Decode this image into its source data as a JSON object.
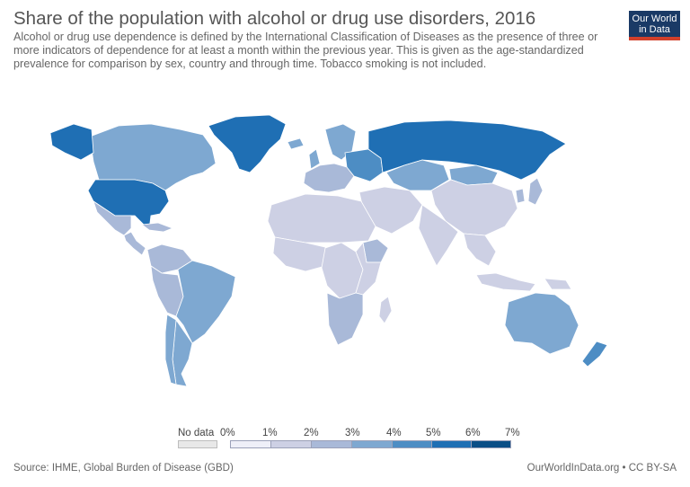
{
  "header": {
    "title": "Share of the population with alcohol or drug use disorders, 2016",
    "subtitle": "Alcohol or drug use dependence is defined by the International Classification of Diseases as the presence of three or more indicators of dependence for at least a month within the previous year. This is given as the age-standardized prevalence for comparison by sex, country and through time. Tobacco smoking is not included."
  },
  "logo": {
    "line1": "Our World",
    "line2": "in Data"
  },
  "legend": {
    "no_data_label": "No data",
    "no_data_color": "#e8e8e8",
    "ticks": [
      "0%",
      "1%",
      "2%",
      "3%",
      "4%",
      "5%",
      "6%",
      "7%"
    ],
    "colors": [
      "#eeeff8",
      "#cdd0e4",
      "#a9b9d8",
      "#7ea8d1",
      "#4d8dc4",
      "#1f6fb4",
      "#0b4e86"
    ]
  },
  "map": {
    "ocean_color": "#ffffff",
    "border_color": "#ffffff",
    "regions": [
      {
        "name": "Greenland",
        "bin": 5
      },
      {
        "name": "Canada",
        "bin": 3
      },
      {
        "name": "United States",
        "bin": 5
      },
      {
        "name": "Alaska",
        "bin": 5
      },
      {
        "name": "Mexico",
        "bin": 2
      },
      {
        "name": "Central America",
        "bin": 2
      },
      {
        "name": "Caribbean",
        "bin": 2
      },
      {
        "name": "Colombia/Venezuela",
        "bin": 2
      },
      {
        "name": "Brazil",
        "bin": 3
      },
      {
        "name": "Peru/Bolivia",
        "bin": 2
      },
      {
        "name": "Argentina",
        "bin": 3
      },
      {
        "name": "Chile",
        "bin": 3
      },
      {
        "name": "Europe West",
        "bin": 2
      },
      {
        "name": "Scandinavia",
        "bin": 3
      },
      {
        "name": "UK",
        "bin": 3
      },
      {
        "name": "Iceland",
        "bin": 3
      },
      {
        "name": "Eastern Europe",
        "bin": 4
      },
      {
        "name": "Russia",
        "bin": 5
      },
      {
        "name": "Kazakhstan",
        "bin": 3
      },
      {
        "name": "Mongolia",
        "bin": 3
      },
      {
        "name": "China",
        "bin": 1
      },
      {
        "name": "India",
        "bin": 1
      },
      {
        "name": "Middle East",
        "bin": 1
      },
      {
        "name": "North Africa",
        "bin": 1
      },
      {
        "name": "West Africa",
        "bin": 1
      },
      {
        "name": "Central Africa",
        "bin": 1
      },
      {
        "name": "East Africa",
        "bin": 1
      },
      {
        "name": "Ethiopia",
        "bin": 2
      },
      {
        "name": "Southern Africa",
        "bin": 2
      },
      {
        "name": "Madagascar",
        "bin": 1
      },
      {
        "name": "Southeast Asia",
        "bin": 1
      },
      {
        "name": "Indonesia",
        "bin": 1
      },
      {
        "name": "Japan",
        "bin": 2
      },
      {
        "name": "Korea",
        "bin": 2
      },
      {
        "name": "Australia",
        "bin": 3
      },
      {
        "name": "New Zealand",
        "bin": 4
      },
      {
        "name": "Papua New Guinea",
        "bin": 1
      }
    ]
  },
  "footer": {
    "source": "Source: IHME, Global Burden of Disease (GBD)",
    "credit": "OurWorldInData.org • CC BY-SA"
  }
}
